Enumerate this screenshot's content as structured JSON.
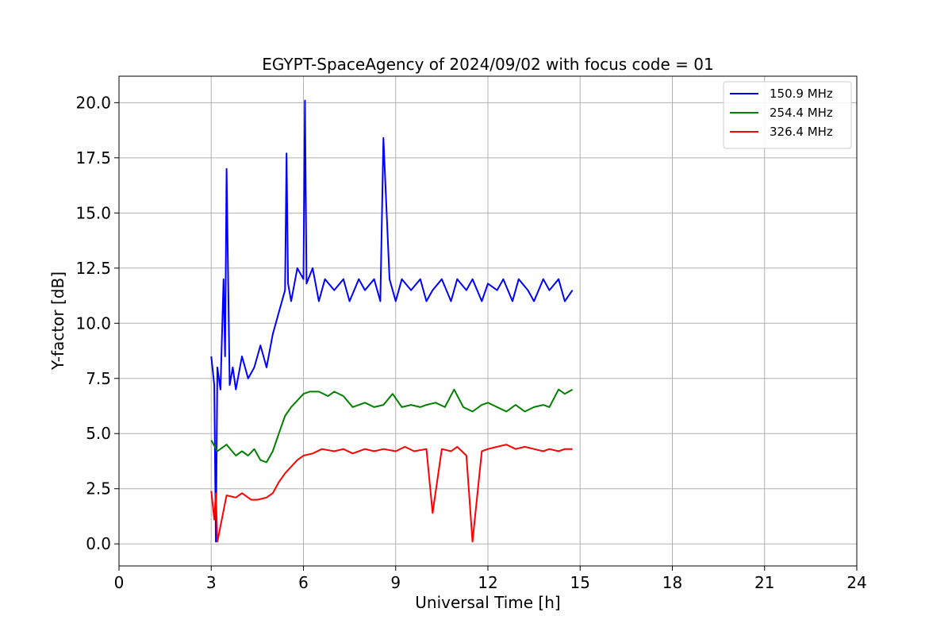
{
  "chart_data": {
    "type": "line",
    "title": "EGYPT-SpaceAgency of 2024/09/02 with focus code = 01",
    "xlabel": "Universal Time [h]",
    "ylabel": "Y-factor [dB]",
    "xlim": [
      0,
      24
    ],
    "ylim": [
      -1.0,
      21.2
    ],
    "xticks": [
      "0",
      "3",
      "6",
      "9",
      "12",
      "15",
      "18",
      "21",
      "24"
    ],
    "yticks": [
      "0.0",
      "2.5",
      "5.0",
      "7.5",
      "10.0",
      "12.5",
      "15.0",
      "17.5",
      "20.0"
    ],
    "grid": true,
    "legend_position": "top-right",
    "series": [
      {
        "name": "150.9 MHz",
        "color": "#0000ff",
        "x": [
          3.0,
          3.1,
          3.15,
          3.2,
          3.3,
          3.4,
          3.45,
          3.5,
          3.6,
          3.7,
          3.8,
          4.0,
          4.2,
          4.4,
          4.6,
          4.8,
          5.0,
          5.2,
          5.4,
          5.45,
          5.5,
          5.6,
          5.8,
          6.0,
          6.05,
          6.1,
          6.3,
          6.5,
          6.7,
          7.0,
          7.3,
          7.5,
          7.8,
          8.0,
          8.3,
          8.5,
          8.6,
          8.8,
          9.0,
          9.2,
          9.5,
          9.8,
          10.0,
          10.2,
          10.5,
          10.8,
          11.0,
          11.3,
          11.5,
          11.8,
          12.0,
          12.3,
          12.5,
          12.8,
          13.0,
          13.3,
          13.5,
          13.8,
          14.0,
          14.3,
          14.5,
          14.75
        ],
        "y": [
          8.5,
          7.2,
          0.1,
          8.0,
          7.0,
          12.0,
          8.5,
          17.0,
          7.2,
          8.0,
          7.0,
          8.5,
          7.5,
          8.0,
          9.0,
          8.0,
          9.5,
          10.5,
          11.5,
          17.7,
          11.8,
          11.0,
          12.5,
          12.0,
          20.1,
          11.8,
          12.5,
          11.0,
          12.0,
          11.5,
          12.0,
          11.0,
          12.0,
          11.5,
          12.0,
          11.0,
          18.4,
          12.0,
          11.0,
          12.0,
          11.5,
          12.0,
          11.0,
          11.5,
          12.0,
          11.0,
          12.0,
          11.5,
          12.0,
          11.0,
          11.8,
          11.5,
          12.0,
          11.0,
          12.0,
          11.5,
          11.0,
          12.0,
          11.5,
          12.0,
          11.0,
          11.5
        ]
      },
      {
        "name": "254.4 MHz",
        "color": "#008000",
        "x": [
          3.0,
          3.2,
          3.5,
          3.8,
          4.0,
          4.2,
          4.4,
          4.6,
          4.8,
          5.0,
          5.2,
          5.4,
          5.6,
          5.8,
          6.0,
          6.2,
          6.5,
          6.8,
          7.0,
          7.3,
          7.6,
          8.0,
          8.3,
          8.6,
          8.9,
          9.2,
          9.5,
          9.8,
          10.0,
          10.3,
          10.6,
          10.9,
          11.2,
          11.5,
          11.8,
          12.0,
          12.3,
          12.6,
          12.9,
          13.2,
          13.5,
          13.8,
          14.0,
          14.3,
          14.5,
          14.75
        ],
        "y": [
          4.7,
          4.2,
          4.5,
          4.0,
          4.2,
          4.0,
          4.3,
          3.8,
          3.7,
          4.2,
          5.0,
          5.8,
          6.2,
          6.5,
          6.8,
          6.9,
          6.9,
          6.7,
          6.9,
          6.7,
          6.2,
          6.4,
          6.2,
          6.3,
          6.8,
          6.2,
          6.3,
          6.2,
          6.3,
          6.4,
          6.2,
          7.0,
          6.2,
          6.0,
          6.3,
          6.4,
          6.2,
          6.0,
          6.3,
          6.0,
          6.2,
          6.3,
          6.2,
          7.0,
          6.8,
          7.0
        ]
      },
      {
        "name": "326.4 MHz",
        "color": "#ff0000",
        "x": [
          3.0,
          3.1,
          3.15,
          3.2,
          3.5,
          3.8,
          4.0,
          4.3,
          4.5,
          4.8,
          5.0,
          5.2,
          5.4,
          5.6,
          5.8,
          6.0,
          6.3,
          6.6,
          7.0,
          7.3,
          7.6,
          8.0,
          8.3,
          8.6,
          9.0,
          9.3,
          9.6,
          10.0,
          10.2,
          10.5,
          10.8,
          11.0,
          11.3,
          11.5,
          11.8,
          12.0,
          12.3,
          12.6,
          12.9,
          13.2,
          13.5,
          13.8,
          14.0,
          14.3,
          14.5,
          14.75
        ],
        "y": [
          2.4,
          1.1,
          2.3,
          0.1,
          2.2,
          2.1,
          2.3,
          2.0,
          2.0,
          2.1,
          2.3,
          2.8,
          3.2,
          3.5,
          3.8,
          4.0,
          4.1,
          4.3,
          4.2,
          4.3,
          4.1,
          4.3,
          4.2,
          4.3,
          4.2,
          4.4,
          4.2,
          4.3,
          1.4,
          4.3,
          4.2,
          4.4,
          4.0,
          0.1,
          4.2,
          4.3,
          4.4,
          4.5,
          4.3,
          4.4,
          4.3,
          4.2,
          4.3,
          4.2,
          4.3,
          4.3
        ]
      }
    ]
  }
}
